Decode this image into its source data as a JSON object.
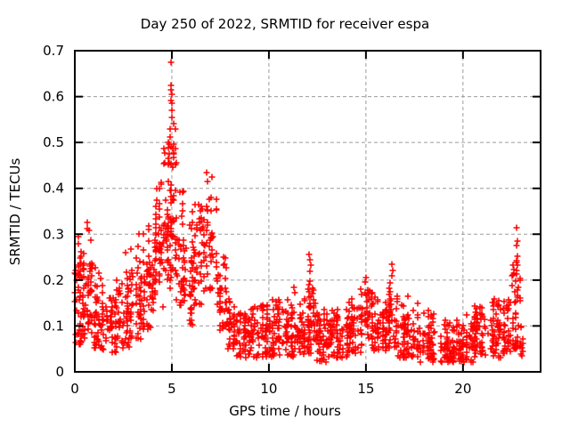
{
  "figure": {
    "background": "#ffffff"
  },
  "chart_data": {
    "type": "scatter",
    "title": "Day 250 of 2022, SRMTID for receiver espa",
    "xlabel": "GPS time / hours",
    "ylabel": "SRMTID / TECUs",
    "xlim": [
      0,
      24
    ],
    "ylim": [
      0,
      0.7
    ],
    "xticks": [
      0,
      5,
      10,
      15,
      20
    ],
    "xtick_labels": [
      "0",
      "5",
      "10",
      "15",
      "20"
    ],
    "yticks": [
      0,
      0.1,
      0.2,
      0.3,
      0.4,
      0.5,
      0.6,
      0.7
    ],
    "ytick_labels": [
      "0",
      "0.1",
      "0.2",
      "0.3",
      "0.4",
      "0.5",
      "0.6",
      "0.7"
    ],
    "grid": true,
    "grid_style": "dashed",
    "legend": "none",
    "marker": "plus",
    "marker_color": "#ff0000",
    "grid_color": "#9c9c9c",
    "axis_color": "#000000",
    "text_color": "#000000",
    "seed": 20220250,
    "series_name": "SRMTID",
    "description_of_data": "Dense scatter of ~1900 red plus markers: high-variance peak near hour 5 (max 0.68 TECUs), secondary bump near hour 7 (0.43), low baseline 0.03-0.15 from hours 8-23 with small bumps at 12, 15, 16.3, and a final rise to 0.32 near hour 22.8",
    "density_bins": [
      [
        0.0,
        0.35,
        45,
        0.06,
        0.3,
        0.16,
        0.16
      ],
      [
        0.35,
        0.95,
        60,
        0.07,
        0.32,
        0.17,
        0.16
      ],
      [
        0.95,
        1.35,
        40,
        0.05,
        0.25,
        0.12,
        0.12
      ],
      [
        1.35,
        2.15,
        60,
        0.04,
        0.2,
        0.1,
        0.1
      ],
      [
        2.15,
        2.85,
        55,
        0.05,
        0.26,
        0.12,
        0.12
      ],
      [
        2.85,
        3.45,
        50,
        0.07,
        0.3,
        0.15,
        0.14
      ],
      [
        3.45,
        4.05,
        55,
        0.09,
        0.35,
        0.19,
        0.16
      ],
      [
        4.05,
        4.55,
        55,
        0.13,
        0.44,
        0.26,
        0.18
      ],
      [
        4.55,
        4.95,
        50,
        0.18,
        0.5,
        0.32,
        0.2
      ],
      [
        4.95,
        5.25,
        40,
        0.22,
        0.56,
        0.36,
        0.22
      ],
      [
        5.25,
        5.65,
        40,
        0.14,
        0.42,
        0.25,
        0.18
      ],
      [
        5.65,
        6.15,
        40,
        0.1,
        0.36,
        0.2,
        0.16
      ],
      [
        6.15,
        6.65,
        40,
        0.14,
        0.37,
        0.24,
        0.16
      ],
      [
        6.65,
        7.35,
        50,
        0.17,
        0.4,
        0.28,
        0.16
      ],
      [
        7.35,
        7.85,
        40,
        0.09,
        0.26,
        0.16,
        0.12
      ],
      [
        7.85,
        8.35,
        40,
        0.05,
        0.16,
        0.1,
        0.09
      ],
      [
        8.35,
        9.05,
        55,
        0.03,
        0.13,
        0.08,
        0.08
      ],
      [
        9.05,
        10.05,
        75,
        0.03,
        0.15,
        0.09,
        0.09
      ],
      [
        10.05,
        11.05,
        75,
        0.03,
        0.16,
        0.09,
        0.09
      ],
      [
        11.05,
        11.85,
        60,
        0.03,
        0.15,
        0.08,
        0.09
      ],
      [
        11.85,
        12.45,
        55,
        0.04,
        0.24,
        0.11,
        0.12
      ],
      [
        12.45,
        13.05,
        55,
        0.02,
        0.15,
        0.07,
        0.08
      ],
      [
        13.05,
        14.05,
        75,
        0.03,
        0.14,
        0.07,
        0.08
      ],
      [
        14.05,
        14.75,
        55,
        0.04,
        0.17,
        0.09,
        0.09
      ],
      [
        14.75,
        15.35,
        50,
        0.05,
        0.2,
        0.11,
        0.1
      ],
      [
        15.35,
        16.05,
        55,
        0.04,
        0.17,
        0.09,
        0.09
      ],
      [
        16.05,
        16.65,
        50,
        0.05,
        0.22,
        0.11,
        0.1
      ],
      [
        16.65,
        17.55,
        65,
        0.03,
        0.16,
        0.08,
        0.09
      ],
      [
        17.55,
        18.55,
        70,
        0.02,
        0.18,
        0.07,
        0.09
      ],
      [
        18.55,
        19.55,
        70,
        0.02,
        0.12,
        0.05,
        0.07
      ],
      [
        19.55,
        20.55,
        70,
        0.02,
        0.13,
        0.06,
        0.07
      ],
      [
        20.55,
        21.35,
        60,
        0.03,
        0.16,
        0.08,
        0.08
      ],
      [
        21.35,
        22.05,
        55,
        0.03,
        0.16,
        0.09,
        0.09
      ],
      [
        22.05,
        22.55,
        40,
        0.04,
        0.16,
        0.08,
        0.09
      ],
      [
        22.55,
        22.95,
        45,
        0.05,
        0.27,
        0.13,
        0.16
      ],
      [
        22.95,
        23.1,
        10,
        0.03,
        0.1,
        0.06,
        0.06
      ]
    ],
    "highlight_points": [
      [
        4.97,
        0.675
      ],
      [
        4.94,
        0.625
      ],
      [
        4.96,
        0.615
      ],
      [
        4.99,
        0.605
      ],
      [
        4.95,
        0.592
      ],
      [
        5.0,
        0.585
      ],
      [
        4.98,
        0.57
      ],
      [
        5.02,
        0.555
      ],
      [
        4.92,
        0.53
      ],
      [
        4.9,
        0.512
      ],
      [
        4.85,
        0.497
      ],
      [
        4.82,
        0.488
      ],
      [
        4.87,
        0.476
      ],
      [
        4.8,
        0.465
      ],
      [
        4.88,
        0.455
      ],
      [
        6.8,
        0.435
      ],
      [
        6.83,
        0.415
      ],
      [
        7.08,
        0.425
      ],
      [
        7.0,
        0.38
      ],
      [
        6.5,
        0.36
      ],
      [
        6.05,
        0.35
      ],
      [
        0.62,
        0.325
      ],
      [
        0.66,
        0.312
      ],
      [
        2.6,
        0.26
      ],
      [
        3.3,
        0.3
      ],
      [
        11.3,
        0.185
      ],
      [
        11.34,
        0.172
      ],
      [
        12.08,
        0.255
      ],
      [
        12.12,
        0.245
      ],
      [
        12.17,
        0.232
      ],
      [
        12.1,
        0.22
      ],
      [
        15.02,
        0.205
      ],
      [
        14.98,
        0.195
      ],
      [
        16.33,
        0.235
      ],
      [
        16.37,
        0.222
      ],
      [
        16.35,
        0.21
      ],
      [
        17.15,
        0.165
      ],
      [
        22.77,
        0.315
      ],
      [
        22.8,
        0.285
      ],
      [
        22.74,
        0.275
      ],
      [
        22.79,
        0.252
      ],
      [
        22.76,
        0.243
      ],
      [
        22.81,
        0.232
      ],
      [
        22.75,
        0.222
      ],
      [
        22.78,
        0.213
      ]
    ]
  }
}
